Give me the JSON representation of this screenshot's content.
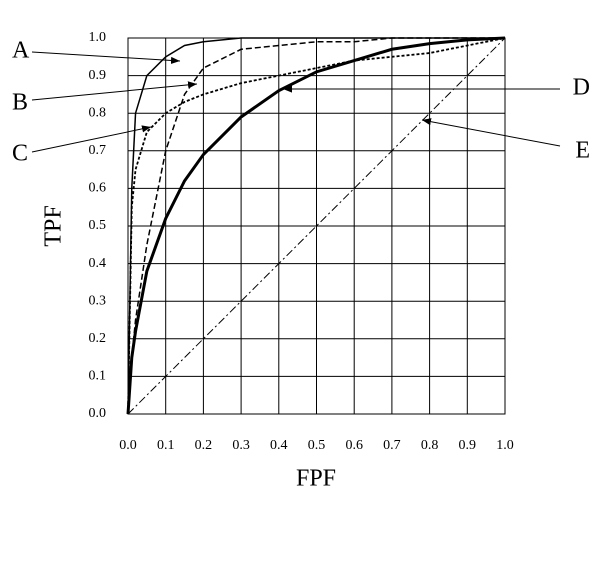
{
  "chart_data": {
    "type": "line",
    "xlabel": "FPF",
    "ylabel": "TPF",
    "x": [
      0,
      0.01,
      0.02,
      0.05,
      0.1,
      0.15,
      0.2,
      0.3,
      0.4,
      0.5,
      0.6,
      0.7,
      0.8,
      0.9,
      1.0
    ],
    "series": [
      {
        "name": "A",
        "color": "#000000",
        "dash": "solid",
        "linewidth": 1.5,
        "values": [
          0,
          0.6,
          0.8,
          0.9,
          0.95,
          0.98,
          0.99,
          1.0,
          1.0,
          1.0,
          1.0,
          1.0,
          1.0,
          1.0,
          1.0
        ]
      },
      {
        "name": "B",
        "color": "#000000",
        "dash": "dashed",
        "linewidth": 1.5,
        "values": [
          0,
          0.15,
          0.25,
          0.45,
          0.7,
          0.85,
          0.92,
          0.97,
          0.98,
          0.99,
          0.99,
          1.0,
          1.0,
          1.0,
          1.0
        ]
      },
      {
        "name": "C",
        "color": "#000000",
        "dash": "dotted",
        "linewidth": 1.8,
        "values": [
          0,
          0.55,
          0.65,
          0.75,
          0.8,
          0.83,
          0.85,
          0.88,
          0.9,
          0.92,
          0.94,
          0.95,
          0.96,
          0.98,
          1.0
        ]
      },
      {
        "name": "D",
        "color": "#000000",
        "dash": "solid",
        "linewidth": 3,
        "values": [
          0,
          0.15,
          0.22,
          0.38,
          0.52,
          0.62,
          0.69,
          0.79,
          0.86,
          0.91,
          0.94,
          0.97,
          0.985,
          0.995,
          1.0
        ]
      },
      {
        "name": "E",
        "color": "#000000",
        "dash": "dashdot",
        "linewidth": 1,
        "values": [
          0,
          0.01,
          0.02,
          0.05,
          0.1,
          0.15,
          0.2,
          0.3,
          0.4,
          0.5,
          0.6,
          0.7,
          0.8,
          0.9,
          1.0
        ]
      }
    ],
    "xlim": [
      0,
      1
    ],
    "ylim": [
      0,
      1
    ],
    "xticks": [
      {
        "value": 0,
        "label": "0.0"
      },
      0.1,
      0.2,
      0.3,
      0.4,
      0.5,
      0.6,
      0.7,
      0.8,
      0.9,
      {
        "value": 1,
        "label": "1.0"
      }
    ],
    "yticks": [
      {
        "value": 0,
        "label": "0.0"
      },
      0.1,
      0.2,
      0.3,
      0.4,
      0.5,
      0.6,
      0.7,
      0.8,
      0.9,
      {
        "value": 1,
        "label": "1.0"
      }
    ],
    "grid": true
  }
}
